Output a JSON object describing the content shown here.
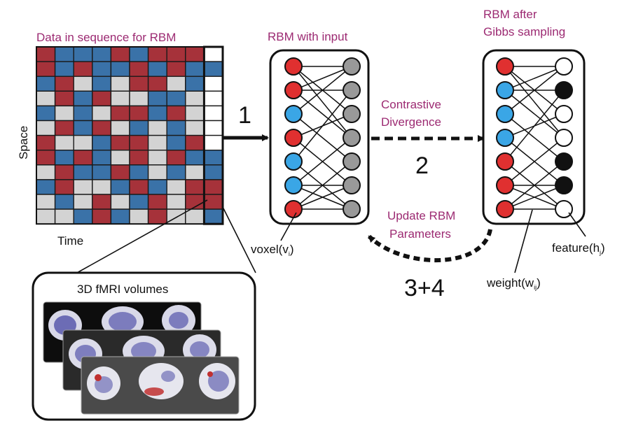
{
  "colors": {
    "red": "#c0303a",
    "blue": "#3a86c4",
    "gray_cell": "#d3d3d3",
    "dark_red": "#a6323a",
    "dark_blue": "#3a72a8",
    "label_purple": "#9c2a72",
    "hidden_gray": "#999999",
    "node_red": "#e03030",
    "node_blue": "#3aa6e6"
  },
  "labels": {
    "data_title": "Data in sequence for RBM",
    "space": "Space",
    "time": "Time",
    "rbm_input_title": "RBM with input",
    "rbm_gibbs_title_1": "RBM after",
    "rbm_gibbs_title_2": "Gibbs sampling",
    "step1": "1",
    "cd_1": "Contrastive",
    "cd_2": "Divergence",
    "step2": "2",
    "update_1": "Update RBM",
    "update_2": "Parameters",
    "step34": "3+4",
    "voxel_main": "voxel(v",
    "voxel_sub": "i",
    "voxel_close": ")",
    "feature_main": "feature(h",
    "feature_sub": "j",
    "feature_close": ")",
    "weight_main": "weight(w",
    "weight_sub": "ij",
    "weight_close": ")",
    "fmri_title": "3D fMRI volumes"
  },
  "grid": {
    "rows": [
      "RBBBRBRRRW",
      "RBRBBRBRBB",
      "BRGBGRRGBW",
      "GRBRGGBBGW",
      "BGBGRRBRGW",
      "GRBRGBGBGW",
      "RGGBRRGBRW",
      "RBRBGRGRBB",
      "GRBBRBGBGB",
      "BRGGBRBGRR",
      "GBGRGBRGRR",
      "GGBRBGRGGB"
    ]
  },
  "rbm_input": {
    "visible": [
      "R",
      "R",
      "B",
      "R",
      "B",
      "B",
      "R"
    ],
    "hidden": [
      "G",
      "G",
      "G",
      "G",
      "G",
      "G",
      "G"
    ]
  },
  "rbm_gibbs": {
    "visible": [
      "R",
      "B",
      "B",
      "B",
      "R",
      "R",
      "R"
    ],
    "hidden": [
      "W",
      "K",
      "W",
      "W",
      "K",
      "K",
      "W"
    ]
  }
}
